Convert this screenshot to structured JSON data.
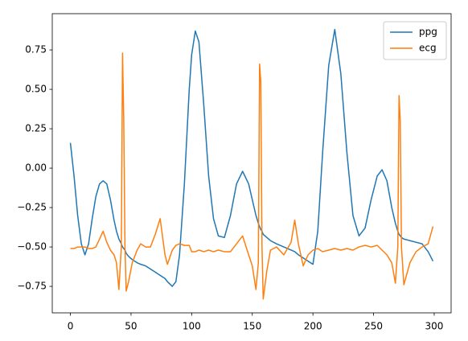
{
  "chart_data": {
    "type": "line",
    "x": [
      0,
      3,
      6,
      9,
      12,
      15,
      18,
      21,
      24,
      27,
      30,
      33,
      36,
      38,
      40,
      42,
      43,
      44,
      45,
      46,
      48,
      51,
      55,
      58,
      62,
      66,
      70,
      74,
      78,
      80,
      84,
      87,
      90,
      94,
      98,
      100,
      103,
      106,
      110,
      114,
      118,
      122,
      127,
      132,
      137,
      142,
      147,
      150,
      153,
      155,
      156,
      157,
      158,
      159,
      162,
      165,
      170,
      176,
      182,
      185,
      188,
      192,
      196,
      200,
      204,
      208,
      213,
      218,
      223,
      228,
      233,
      238,
      243,
      248,
      253,
      257,
      261,
      265,
      268,
      270,
      271,
      272,
      273,
      275,
      280,
      285,
      290,
      295,
      299
    ],
    "series": [
      {
        "name": "ppg",
        "color": "#1f77b4",
        "values": [
          0.16,
          -0.05,
          -0.3,
          -0.48,
          -0.55,
          -0.48,
          -0.32,
          -0.18,
          -0.1,
          -0.08,
          -0.1,
          -0.2,
          -0.33,
          -0.4,
          -0.45,
          -0.48,
          -0.5,
          -0.51,
          -0.52,
          -0.54,
          -0.56,
          -0.58,
          -0.6,
          -0.61,
          -0.62,
          -0.64,
          -0.66,
          -0.68,
          -0.7,
          -0.72,
          -0.75,
          -0.72,
          -0.55,
          -0.1,
          0.5,
          0.72,
          0.87,
          0.8,
          0.4,
          -0.05,
          -0.32,
          -0.43,
          -0.44,
          -0.3,
          -0.1,
          -0.02,
          -0.1,
          -0.2,
          -0.3,
          -0.35,
          -0.37,
          -0.39,
          -0.4,
          -0.42,
          -0.44,
          -0.46,
          -0.48,
          -0.5,
          -0.52,
          -0.53,
          -0.55,
          -0.57,
          -0.59,
          -0.61,
          -0.4,
          0.1,
          0.65,
          0.88,
          0.6,
          0.1,
          -0.3,
          -0.43,
          -0.38,
          -0.2,
          -0.05,
          -0.01,
          -0.08,
          -0.25,
          -0.35,
          -0.4,
          -0.42,
          -0.43,
          -0.44,
          -0.45,
          -0.46,
          -0.47,
          -0.48,
          -0.53,
          -0.59
        ]
      },
      {
        "name": "ecg",
        "color": "#ff7f0e",
        "values": [
          -0.51,
          -0.51,
          -0.5,
          -0.5,
          -0.5,
          -0.51,
          -0.51,
          -0.5,
          -0.45,
          -0.4,
          -0.47,
          -0.52,
          -0.55,
          -0.6,
          -0.77,
          -0.5,
          0.73,
          0.3,
          -0.5,
          -0.78,
          -0.72,
          -0.6,
          -0.52,
          -0.48,
          -0.5,
          -0.5,
          -0.42,
          -0.32,
          -0.55,
          -0.61,
          -0.52,
          -0.49,
          -0.48,
          -0.49,
          -0.49,
          -0.53,
          -0.53,
          -0.52,
          -0.53,
          -0.52,
          -0.53,
          -0.52,
          -0.53,
          -0.53,
          -0.48,
          -0.43,
          -0.55,
          -0.62,
          -0.77,
          -0.6,
          0.66,
          0.55,
          -0.5,
          -0.83,
          -0.65,
          -0.52,
          -0.5,
          -0.55,
          -0.47,
          -0.33,
          -0.48,
          -0.62,
          -0.55,
          -0.52,
          -0.51,
          -0.53,
          -0.52,
          -0.51,
          -0.52,
          -0.51,
          -0.52,
          -0.5,
          -0.49,
          -0.5,
          -0.49,
          -0.52,
          -0.55,
          -0.6,
          -0.73,
          -0.5,
          0.46,
          0.3,
          -0.5,
          -0.74,
          -0.6,
          -0.53,
          -0.5,
          -0.48,
          -0.37
        ]
      }
    ],
    "xlim": [
      -14.95,
      313.95
    ],
    "ylim": [
      -0.918,
      0.98
    ],
    "xticks": [
      0,
      50,
      100,
      150,
      200,
      250,
      300
    ],
    "yticks": [
      {
        "value": -0.75,
        "label": "−0.75"
      },
      {
        "value": -0.5,
        "label": "−0.50"
      },
      {
        "value": -0.25,
        "label": "−0.25"
      },
      {
        "value": 0,
        "label": "0.00"
      },
      {
        "value": 0.25,
        "label": "0.25"
      },
      {
        "value": 0.5,
        "label": "0.50"
      },
      {
        "value": 0.75,
        "label": "0.75"
      }
    ],
    "legend": "upper right"
  }
}
